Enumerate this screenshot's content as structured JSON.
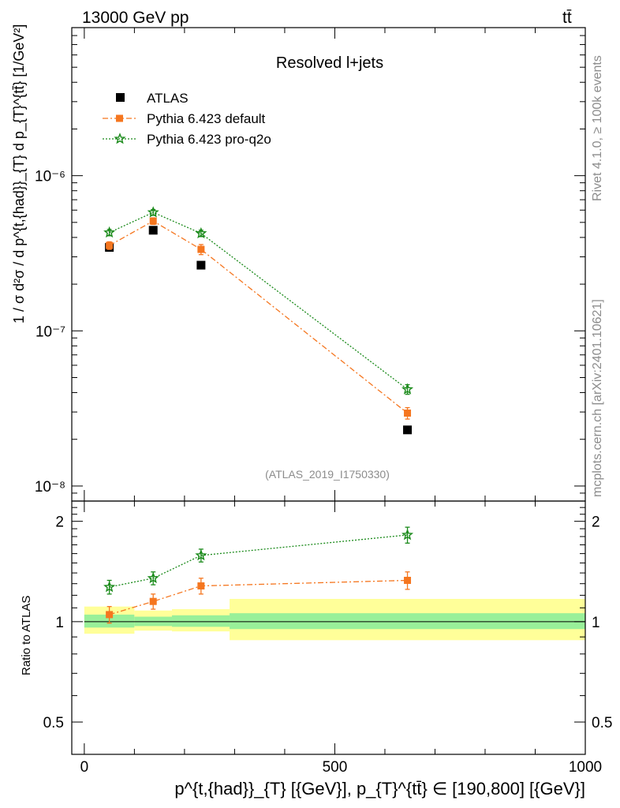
{
  "header": {
    "energy_label": "13000 GeV pp",
    "process_label": "tt̄",
    "side_label_rivet": "Rivet 4.1.0, ≥ 100k events",
    "side_label_mcplots": "mcplots.cern.ch [arXiv:2401.10621]"
  },
  "colors": {
    "atlas": "#000000",
    "pythia_default": "#f5761f",
    "pythia_proq2o": "#1a8a1a",
    "band_inner": "#99f099",
    "band_outer": "#ffff99"
  },
  "chart_data": [
    {
      "type": "scatter",
      "panel": "main",
      "title": "Resolved l+jets",
      "analysis_tag": "(ATLAS_2019_I1750330)",
      "ylabel": "1 / σ d²σ / d p^{t,{had}}_{T} d p_{T}^{tt̄} [1/GeV²]",
      "yscale": "log",
      "ylim": [
        8e-09,
        9e-06
      ],
      "xlim": [
        -25,
        1000
      ],
      "y_tick_labels": [
        "10⁻⁸",
        "10⁻⁷",
        "10⁻⁶"
      ],
      "y_tick_values": [
        1e-08,
        1e-07,
        1e-06
      ],
      "legend_position": "top-left",
      "series": [
        {
          "name": "ATLAS",
          "style": "square-marker",
          "x": [
            50,
            137.5,
            233,
            645
          ],
          "y": [
            3.45e-07,
            4.45e-07,
            2.65e-07,
            2.3e-08
          ],
          "yerr": [
            0,
            0,
            0,
            0
          ]
        },
        {
          "name": "Pythia 6.423 default",
          "style": "dash-dot-square",
          "x": [
            50,
            137.5,
            233,
            645
          ],
          "y": [
            3.55e-07,
            5.1e-07,
            3.35e-07,
            2.95e-08
          ],
          "yerr": [
            2e-08,
            2.5e-08,
            2.5e-08,
            2.5e-09
          ]
        },
        {
          "name": "Pythia 6.423 pro-q2o",
          "style": "dotted-star",
          "x": [
            50,
            137.5,
            233,
            645
          ],
          "y": [
            4.3e-07,
            5.8e-07,
            4.25e-07,
            4.2e-08
          ],
          "yerr": [
            2e-08,
            2.5e-08,
            2e-08,
            3e-09
          ]
        }
      ]
    },
    {
      "type": "scatter",
      "panel": "ratio",
      "ylabel": "Ratio to ATLAS",
      "xlabel": "p^{t,{had}}_{T} [{GeV}], p_{T}^{tt̄} ∈ [190,800] [{GeV}]",
      "ylim": [
        0.4,
        2.3
      ],
      "xlim": [
        -25,
        1000
      ],
      "x_tick_labels": [
        "0",
        "500",
        "1000"
      ],
      "x_tick_values": [
        0,
        500,
        1000
      ],
      "y_tick_labels": [
        "0.5",
        "1",
        "2"
      ],
      "y_tick_values": [
        0.5,
        1,
        2
      ],
      "bands": [
        {
          "x_low": 0,
          "x_high": 100,
          "inner": [
            0.96,
            1.05
          ],
          "outer": [
            0.92,
            1.11
          ]
        },
        {
          "x_low": 100,
          "x_high": 175,
          "inner": [
            0.97,
            1.035
          ],
          "outer": [
            0.94,
            1.08
          ]
        },
        {
          "x_low": 175,
          "x_high": 290,
          "inner": [
            0.965,
            1.045
          ],
          "outer": [
            0.935,
            1.09
          ]
        },
        {
          "x_low": 290,
          "x_high": 1000,
          "inner": [
            0.95,
            1.06
          ],
          "outer": [
            0.88,
            1.17
          ]
        }
      ],
      "series": [
        {
          "name": "Pythia 6.423 default",
          "x": [
            50,
            137.5,
            233,
            645
          ],
          "y": [
            1.05,
            1.15,
            1.28,
            1.33
          ],
          "yerr": [
            0.06,
            0.06,
            0.07,
            0.08
          ]
        },
        {
          "name": "Pythia 6.423 pro-q2o",
          "x": [
            50,
            137.5,
            233,
            645
          ],
          "y": [
            1.27,
            1.35,
            1.58,
            1.82
          ],
          "yerr": [
            0.06,
            0.06,
            0.07,
            0.1
          ]
        }
      ]
    }
  ]
}
